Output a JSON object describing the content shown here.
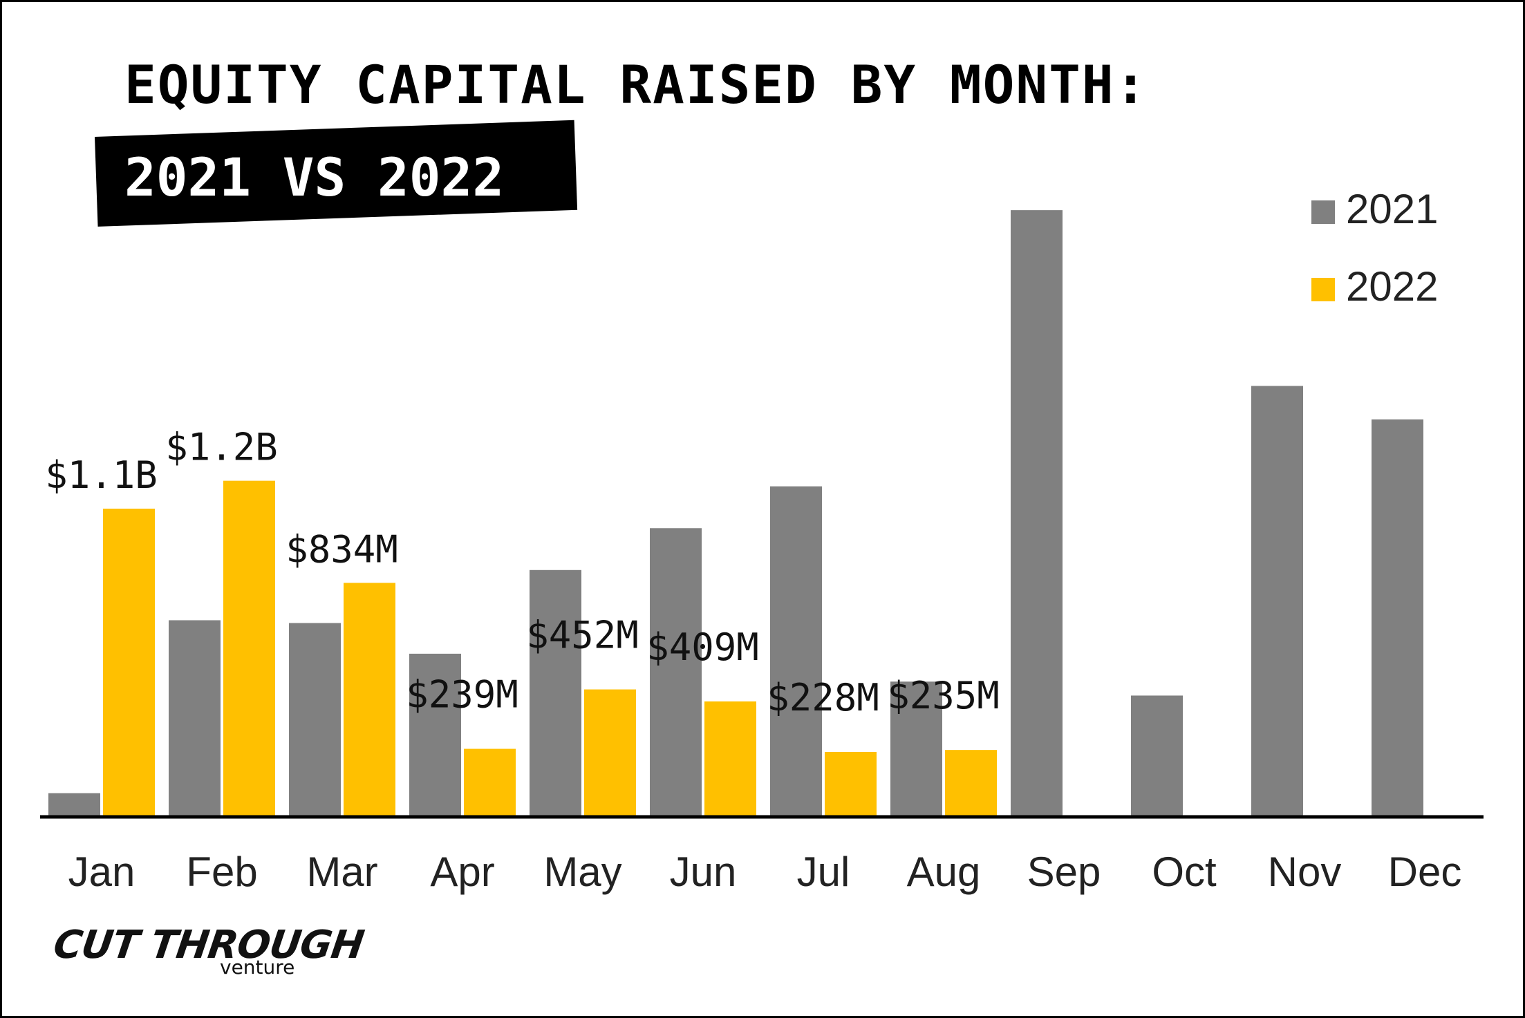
{
  "header": {
    "title": "EQUITY CAPITAL RAISED BY MONTH:",
    "subtitle": "2021 VS 2022"
  },
  "branding": {
    "logo_main": "CUT THROUGH",
    "logo_sub": "venture"
  },
  "colors": {
    "series_2021": "#808080",
    "series_2022": "#ffc000",
    "axis": "#000000"
  },
  "chart_data": {
    "type": "bar",
    "title": "EQUITY CAPITAL RAISED BY MONTH: 2021 VS 2022",
    "xlabel": "",
    "ylabel": "",
    "categories": [
      "Jan",
      "Feb",
      "Mar",
      "Apr",
      "May",
      "Jun",
      "Jul",
      "Aug",
      "Sep",
      "Oct",
      "Nov",
      "Dec"
    ],
    "series": [
      {
        "name": "2021",
        "color": "#808080",
        "values": [
          80,
          700,
          690,
          580,
          880,
          1030,
          1180,
          480,
          2170,
          430,
          1540,
          1420
        ],
        "labels": [
          "",
          "",
          "",
          "",
          "",
          "",
          "",
          "",
          "",
          "",
          "",
          ""
        ]
      },
      {
        "name": "2022",
        "color": "#ffc000",
        "values": [
          1100,
          1200,
          834,
          239,
          452,
          409,
          228,
          235,
          null,
          null,
          null,
          null
        ],
        "labels": [
          "$1.1B",
          "$1.2B",
          "$834M",
          "$239M",
          "$452M",
          "$409M",
          "$228M",
          "$235M",
          "",
          "",
          "",
          ""
        ]
      }
    ],
    "ylim": [
      0,
      2200
    ],
    "grid": false,
    "legend": "top-right"
  }
}
